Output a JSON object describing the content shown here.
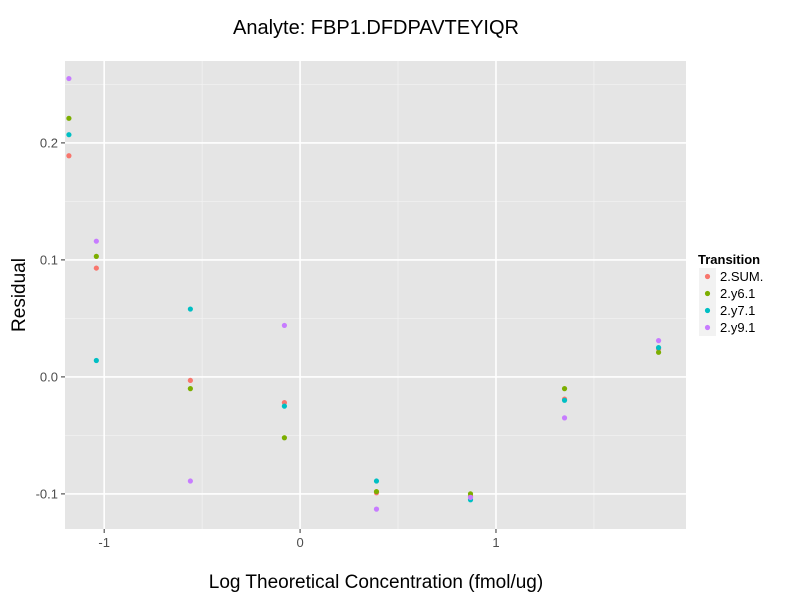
{
  "chart_data": {
    "type": "scatter",
    "title": "Analyte: FBP1.DFDPAVTEYIQR",
    "xlabel": "Log Theoretical Concentration (fmol/ug)",
    "ylabel": "Residual",
    "xlim": [
      -1.2,
      1.97
    ],
    "ylim": [
      -0.13,
      0.27
    ],
    "x_ticks": [
      -1,
      0,
      1
    ],
    "x_tick_labels": [
      "-1",
      "0",
      "1"
    ],
    "x_minor_ticks": [
      -0.5,
      0.5,
      1.5
    ],
    "y_ticks": [
      -0.1,
      0.0,
      0.1,
      0.2
    ],
    "y_tick_labels": [
      "-0.1",
      "0.0",
      "0.1",
      "0.2"
    ],
    "y_minor_ticks": [
      -0.05,
      0.05,
      0.15,
      0.25
    ],
    "legend": {
      "title": "Transition",
      "position": "right"
    },
    "series": [
      {
        "name": "2.SUM.",
        "color": "#F8766D",
        "points": [
          [
            -1.18,
            0.189
          ],
          [
            -1.04,
            0.093
          ],
          [
            -0.56,
            -0.003
          ],
          [
            -0.08,
            -0.022
          ],
          [
            0.39,
            -0.099
          ],
          [
            0.87,
            -0.102
          ],
          [
            1.35,
            -0.019
          ],
          [
            1.83,
            0.024
          ]
        ]
      },
      {
        "name": "2.y6.1",
        "color": "#7CAE00",
        "points": [
          [
            -1.18,
            0.221
          ],
          [
            -1.04,
            0.103
          ],
          [
            -0.56,
            -0.01
          ],
          [
            -0.08,
            -0.052
          ],
          [
            0.39,
            -0.098
          ],
          [
            0.87,
            -0.1
          ],
          [
            1.35,
            -0.01
          ],
          [
            1.83,
            0.021
          ]
        ]
      },
      {
        "name": "2.y7.1",
        "color": "#00BFC4",
        "points": [
          [
            -1.18,
            0.207
          ],
          [
            -1.04,
            0.014
          ],
          [
            -0.56,
            0.058
          ],
          [
            -0.08,
            -0.025
          ],
          [
            0.39,
            -0.089
          ],
          [
            0.87,
            -0.105
          ],
          [
            1.35,
            -0.02
          ],
          [
            1.83,
            0.025
          ]
        ]
      },
      {
        "name": "2.y9.1",
        "color": "#C77CFF",
        "points": [
          [
            -1.18,
            0.255
          ],
          [
            -1.04,
            0.116
          ],
          [
            -0.56,
            -0.089
          ],
          [
            -0.08,
            0.044
          ],
          [
            0.39,
            -0.113
          ],
          [
            0.87,
            -0.103
          ],
          [
            1.35,
            -0.035
          ],
          [
            1.83,
            0.031
          ]
        ]
      }
    ]
  }
}
